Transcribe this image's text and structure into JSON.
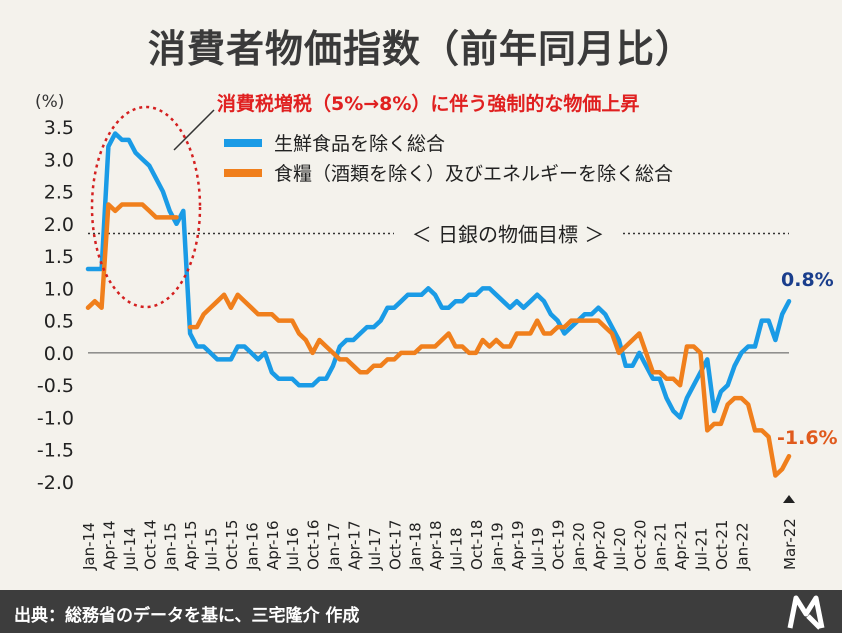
{
  "page": {
    "title": "消費者物価指数（前年同月比）",
    "footer": "出典：総務省のデータを基に、三宅隆介 作成"
  },
  "chart_data": {
    "type": "line",
    "title": "消費者物価指数（前年同月比）",
    "ylabel": "(%)",
    "ylim": [
      -2.0,
      3.5
    ],
    "yticks": [
      "3.5",
      "3.0",
      "2.5",
      "2.0",
      "1.5",
      "1.0",
      "0.5",
      "0.0",
      "-0.5",
      "-1.0",
      "-1.5",
      "-2.0"
    ],
    "xticks": [
      "Jan-14",
      "Apr-14",
      "Jul-14",
      "Oct-14",
      "Jan-15",
      "Apr-15",
      "Jul-15",
      "Oct-15",
      "Jan-16",
      "Apr-16",
      "Jul-16",
      "Oct-16",
      "Jan-17",
      "Apr-17",
      "Jul-17",
      "Oct-17",
      "Jan-18",
      "Apr-18",
      "Jul-18",
      "Oct-18",
      "Jan-19",
      "Apr-19",
      "Jul-19",
      "Oct-19",
      "Jan-20",
      "Apr-20",
      "Jul-20",
      "Oct-20",
      "Jan-21",
      "Apr-21",
      "Jul-21",
      "Oct-21",
      "Jan-22",
      "Mar-22"
    ],
    "x_start": "Jan-14",
    "series": [
      {
        "name": "生鮮食品を除く総合",
        "color": "#1a9be6",
        "values": [
          1.3,
          1.3,
          1.3,
          3.2,
          3.4,
          3.3,
          3.3,
          3.1,
          3.0,
          2.9,
          2.7,
          2.5,
          2.2,
          2.0,
          2.2,
          0.3,
          0.1,
          0.1,
          0.0,
          -0.1,
          -0.1,
          -0.1,
          0.1,
          0.1,
          0.0,
          -0.1,
          0.0,
          -0.3,
          -0.4,
          -0.4,
          -0.4,
          -0.5,
          -0.5,
          -0.5,
          -0.4,
          -0.4,
          -0.2,
          0.1,
          0.2,
          0.2,
          0.3,
          0.4,
          0.4,
          0.5,
          0.7,
          0.7,
          0.8,
          0.9,
          0.9,
          0.9,
          1.0,
          0.9,
          0.7,
          0.7,
          0.8,
          0.8,
          0.9,
          0.9,
          1.0,
          1.0,
          0.9,
          0.8,
          0.7,
          0.8,
          0.7,
          0.8,
          0.9,
          0.8,
          0.6,
          0.5,
          0.3,
          0.4,
          0.5,
          0.6,
          0.6,
          0.7,
          0.6,
          0.4,
          0.2,
          -0.2,
          -0.2,
          0.0,
          -0.2,
          -0.4,
          -0.4,
          -0.7,
          -0.9,
          -1.0,
          -0.7,
          -0.5,
          -0.3,
          -0.1,
          -0.9,
          -0.6,
          -0.5,
          -0.2,
          0.0,
          0.1,
          0.1,
          0.5,
          0.5,
          0.2,
          0.6,
          0.8
        ]
      },
      {
        "name": "食糧（酒類を除く）及びエネルギーを除く総合",
        "color": "#f07f1c",
        "values": [
          0.7,
          0.8,
          0.7,
          2.3,
          2.2,
          2.3,
          2.3,
          2.3,
          2.3,
          2.2,
          2.1,
          2.1,
          2.1,
          2.1,
          null,
          0.4,
          0.4,
          0.6,
          0.7,
          0.8,
          0.9,
          0.7,
          0.9,
          0.8,
          0.7,
          0.6,
          0.6,
          0.6,
          0.5,
          0.5,
          0.5,
          0.3,
          0.2,
          0.0,
          0.2,
          0.1,
          0.0,
          -0.1,
          -0.1,
          -0.2,
          -0.3,
          -0.3,
          -0.2,
          -0.2,
          -0.1,
          -0.1,
          0.0,
          0.0,
          0.0,
          0.1,
          0.1,
          0.1,
          0.2,
          0.3,
          0.1,
          0.1,
          0.0,
          0.0,
          0.2,
          0.1,
          0.2,
          0.1,
          0.1,
          0.3,
          0.3,
          0.3,
          0.5,
          0.3,
          0.3,
          0.4,
          0.4,
          0.5,
          0.5,
          0.5,
          0.5,
          0.5,
          0.4,
          0.3,
          0.0,
          0.1,
          0.2,
          0.3,
          0.0,
          -0.3,
          -0.3,
          -0.4,
          -0.4,
          -0.5,
          0.1,
          0.1,
          0.0,
          -1.2,
          -1.1,
          -1.1,
          -0.8,
          -0.7,
          -0.7,
          -0.8,
          -1.2,
          -1.2,
          -1.3,
          -1.9,
          -1.8,
          -1.6
        ]
      }
    ],
    "legend_position": "top-right",
    "reference_line": {
      "value": 1.85,
      "label": "＜ 日銀の物価目標 ＞",
      "style": "dotted"
    },
    "annotation": {
      "text": "消費税増税（5%→8%）に伴う強制的な物価上昇",
      "color": "#e02020"
    },
    "end_labels": [
      {
        "text": "0.8%",
        "color": "#1a3e8c"
      },
      {
        "text": "-1.6%",
        "color": "#e05a1c"
      }
    ],
    "grid": false
  }
}
